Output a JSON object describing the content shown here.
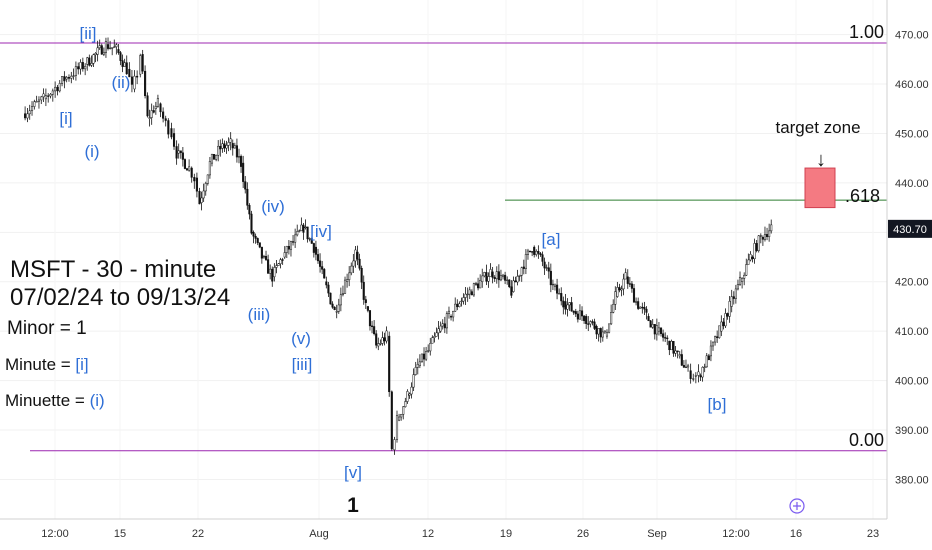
{
  "chart_data": {
    "type": "candlestick",
    "symbol_info": "MSFT - 30 - minute",
    "date_range": "07/02/24 to 09/13/24",
    "last_price": "430.70",
    "ylim": [
      372,
      477
    ],
    "y_ticks": [
      "470.00",
      "460.00",
      "450.00",
      "440.00",
      "430.00",
      "420.00",
      "410.00",
      "400.00",
      "390.00",
      "380.00"
    ],
    "x_ticks": [
      "12:00",
      "15",
      "22",
      "Aug",
      "12",
      "19",
      "26",
      "Sep",
      "12:00",
      "16",
      "23"
    ],
    "price_path": [
      [
        2,
        454
      ],
      [
        4,
        457
      ],
      [
        6,
        461
      ],
      [
        8,
        464
      ],
      [
        9,
        466
      ],
      [
        10,
        468
      ],
      [
        11,
        467
      ],
      [
        12,
        463
      ],
      [
        12.5,
        459
      ],
      [
        13,
        462
      ],
      [
        13.3,
        466
      ],
      [
        14,
        453
      ],
      [
        14.6,
        455
      ],
      [
        15,
        456
      ],
      [
        15.5,
        453
      ],
      [
        16,
        451
      ],
      [
        16.3,
        450
      ],
      [
        16.8,
        446
      ],
      [
        18,
        443
      ],
      [
        18.5,
        441
      ],
      [
        19,
        436
      ],
      [
        20,
        444
      ],
      [
        21,
        447
      ],
      [
        22,
        448
      ],
      [
        23,
        444
      ],
      [
        24,
        430
      ],
      [
        25,
        425
      ],
      [
        26,
        421
      ],
      [
        27,
        425
      ],
      [
        28,
        428
      ],
      [
        29,
        431
      ],
      [
        30,
        427
      ],
      [
        31,
        420
      ],
      [
        32,
        414
      ],
      [
        33,
        420
      ],
      [
        34,
        426
      ],
      [
        35,
        415
      ],
      [
        36,
        407
      ],
      [
        37,
        409
      ],
      [
        37.5,
        386
      ],
      [
        38,
        392
      ],
      [
        39,
        397
      ],
      [
        40,
        403
      ],
      [
        41,
        406
      ],
      [
        42,
        410
      ],
      [
        43,
        413
      ],
      [
        44,
        416
      ],
      [
        45,
        418
      ],
      [
        46,
        420
      ],
      [
        47,
        422
      ],
      [
        48,
        421
      ],
      [
        49,
        418
      ],
      [
        50,
        423
      ],
      [
        51,
        427
      ],
      [
        52,
        424
      ],
      [
        53,
        419
      ],
      [
        54,
        416
      ],
      [
        55,
        414
      ],
      [
        56,
        413
      ],
      [
        57,
        411
      ],
      [
        58,
        409
      ],
      [
        59,
        417
      ],
      [
        60,
        421
      ],
      [
        61,
        416
      ],
      [
        62,
        413
      ],
      [
        63,
        410
      ],
      [
        64,
        408
      ],
      [
        65,
        405
      ],
      [
        66,
        402
      ],
      [
        66.5,
        401
      ],
      [
        67,
        401
      ],
      [
        68,
        405
      ],
      [
        69,
        410
      ],
      [
        70,
        415
      ],
      [
        71,
        420
      ],
      [
        72,
        425
      ],
      [
        73,
        429
      ],
      [
        74,
        431
      ]
    ],
    "levels": [
      {
        "label": "1.00",
        "value": 468.3
      },
      {
        "label": ".618",
        "value": 436.5
      },
      {
        "label": "0.00",
        "value": 385.8
      }
    ],
    "annotations": {
      "waves": [
        "[ii]",
        "[i]",
        "(ii)",
        "(i)",
        "(iv)",
        "[iv]",
        "(iii)",
        "(v)",
        "[iii]",
        "[v]",
        "[a]",
        "[b]"
      ],
      "minor_1": "1",
      "target_label": "target zone",
      "target_arrow": "↓",
      "minor_line": "Minor = 1",
      "minute_prefix": "Minute = ",
      "minute_val": "[i]",
      "minuette_prefix": "Minuette = ",
      "minuette_val": "(i)"
    },
    "colors": {
      "fib_line": "#9c27b0",
      "fib618_line": "#2e7d32",
      "target_fill": "#f47a82",
      "wave_label": "#2f6fd6",
      "candles": "#111111"
    }
  }
}
